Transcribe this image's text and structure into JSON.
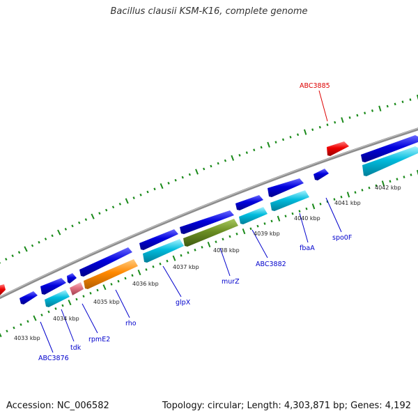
{
  "title": "Bacillus clausii KSM-K16, complete genome",
  "footer": {
    "accession": "Accession: NC_006582",
    "topology": "Topology: circular; Length: 4,303,871 bp; Genes: 4,192"
  },
  "colors": {
    "backbone": "#888888",
    "tick": "#1a8a1a",
    "gene_label": "#0000cc",
    "highlight_label": "#dd0000",
    "forward_gene": "#0000dd",
    "reverse_gene": "#00bbdd",
    "red_gene": "#ee0000",
    "orange_gene": "#ff8800",
    "olive_gene": "#6b8e23",
    "pink_gene": "#e07080"
  },
  "ticks": [
    {
      "label": "4033 kbp"
    },
    {
      "label": "4034 kbp"
    },
    {
      "label": "4035 kbp"
    },
    {
      "label": "4036 kbp"
    },
    {
      "label": "4037 kbp"
    },
    {
      "label": "4038 kbp"
    },
    {
      "label": "4039 kbp"
    },
    {
      "label": "4040 kbp"
    },
    {
      "label": "4041 kbp"
    },
    {
      "label": "4042 kbp"
    }
  ],
  "gene_labels": [
    {
      "name": "ABC3876"
    },
    {
      "name": "tdk"
    },
    {
      "name": "rpmE2"
    },
    {
      "name": "rho"
    },
    {
      "name": "glpX"
    },
    {
      "name": "murZ"
    },
    {
      "name": "ABC3882"
    },
    {
      "name": "fbaA"
    },
    {
      "name": "spo0F"
    },
    {
      "name": "ABC3885"
    }
  ]
}
